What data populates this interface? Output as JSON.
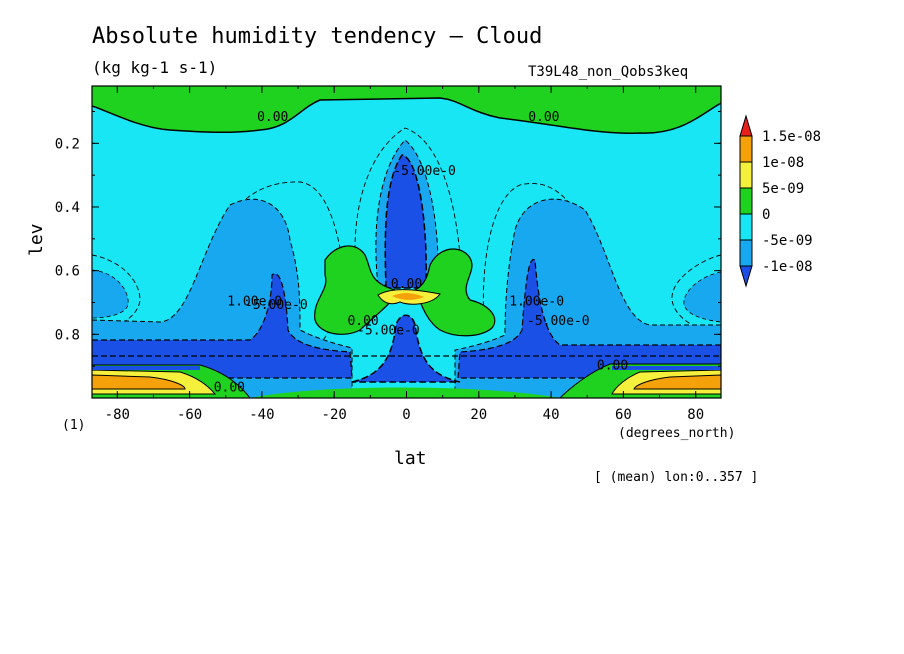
{
  "chart_data": {
    "type": "heatmap",
    "title": "Absolute humidity tendency — Cloud",
    "units": "(kg kg-1 s-1)",
    "run_id": "T39L48_non_Qobs3keq",
    "xlabel": "lat",
    "x_units": "(degrees_north)",
    "ylabel": "lev",
    "y_unit_marker": "(1)",
    "note": "[ (mean) lon:0..357 ]",
    "xlim": [
      -87,
      87
    ],
    "ylim": [
      1.0,
      0.02
    ],
    "x_ticks": [
      "-80",
      "-60",
      "-40",
      "-20",
      "0",
      "20",
      "40",
      "60",
      "80"
    ],
    "x_tick_values": [
      -80,
      -60,
      -40,
      -20,
      0,
      20,
      40,
      60,
      80
    ],
    "y_ticks": [
      "0.2",
      "0.4",
      "0.6",
      "0.8"
    ],
    "y_tick_values": [
      0.2,
      0.4,
      0.6,
      0.8
    ],
    "colorbar": {
      "labels": [
        "1.5e-08",
        "1e-08",
        "5e-09",
        "0",
        "-5e-09",
        "-1e-08"
      ],
      "levels": [
        1.5e-08,
        1e-08,
        5e-09,
        0,
        -5e-09,
        -1e-08
      ],
      "colors": [
        "#e8201c",
        "#f5a20a",
        "#f5f03c",
        "#1fd21f",
        "#18e6f5",
        "#18a8ef",
        "#1a50e6"
      ]
    },
    "contour_labels": [
      {
        "text": "0.00",
        "lat": -37,
        "lev": 0.13
      },
      {
        "text": "0.00",
        "lat": 38,
        "lev": 0.13
      },
      {
        "text": "-5.00e-0",
        "lat": 5,
        "lev": 0.3
      },
      {
        "text": "0.00",
        "lat": 0,
        "lev": 0.655
      },
      {
        "text": "1.00e-0",
        "lat": -42,
        "lev": 0.71
      },
      {
        "text": "-5.00e-0",
        "lat": -36,
        "lev": 0.72
      },
      {
        "text": "0.00",
        "lat": -12,
        "lev": 0.77
      },
      {
        "text": "-5.00e-0",
        "lat": -5,
        "lev": 0.8
      },
      {
        "text": "1.00e-0",
        "lat": 36,
        "lev": 0.71
      },
      {
        "text": "-5.00e-0",
        "lat": 42,
        "lev": 0.77
      },
      {
        "text": "0.00",
        "lat": -49,
        "lev": 0.98
      },
      {
        "text": "0.00",
        "lat": 57,
        "lev": 0.91
      }
    ]
  }
}
